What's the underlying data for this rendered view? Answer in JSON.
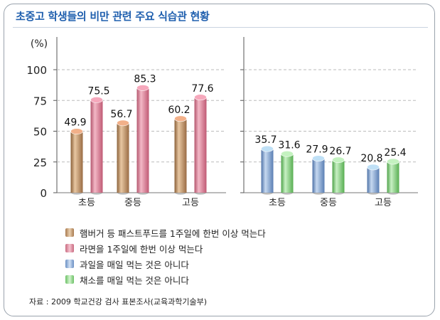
{
  "title": "초중고 학생들의 비만 관련 주요 식습관 현황",
  "source": "자료 : 2009 학교건강 검사 표본조사(교육과학기술부)",
  "legend": [
    {
      "label": "햄버거 등 패스트푸드를 1주일에 한번 이상 먹는다",
      "color": "#c99a6e"
    },
    {
      "label": "라면을 1주일에 한번 이상 먹는다",
      "color": "#e58aa0"
    },
    {
      "label": "과일을 매일 먹는 것은 아니다",
      "color": "#86a9d6"
    },
    {
      "label": "채소를 매일 먹는 것은 아니다",
      "color": "#8fd68a"
    }
  ],
  "chart_data": [
    {
      "type": "bar",
      "categories": [
        "초등",
        "중등",
        "고등"
      ],
      "ylabel": "(%)",
      "ylim": [
        0,
        100
      ],
      "yticks": [
        0,
        25,
        50,
        75,
        100
      ],
      "series": [
        {
          "name": "햄버거 등 패스트푸드를 1주일에 한번 이상 먹는다",
          "values": [
            49.9,
            56.7,
            60.2
          ],
          "color": "#c99a6e"
        },
        {
          "name": "라면을 1주일에 한번 이상 먹는다",
          "values": [
            75.5,
            85.3,
            77.6
          ],
          "color": "#e58aa0"
        }
      ]
    },
    {
      "type": "bar",
      "categories": [
        "초등",
        "중등",
        "고등"
      ],
      "ylim": [
        0,
        100
      ],
      "series": [
        {
          "name": "과일을 매일 먹는 것은 아니다",
          "values": [
            35.7,
            27.9,
            20.8
          ],
          "color": "#86a9d6"
        },
        {
          "name": "채소를 매일 먹는 것은 아니다",
          "values": [
            31.6,
            26.7,
            25.4
          ],
          "color": "#8fd68a"
        }
      ]
    }
  ]
}
